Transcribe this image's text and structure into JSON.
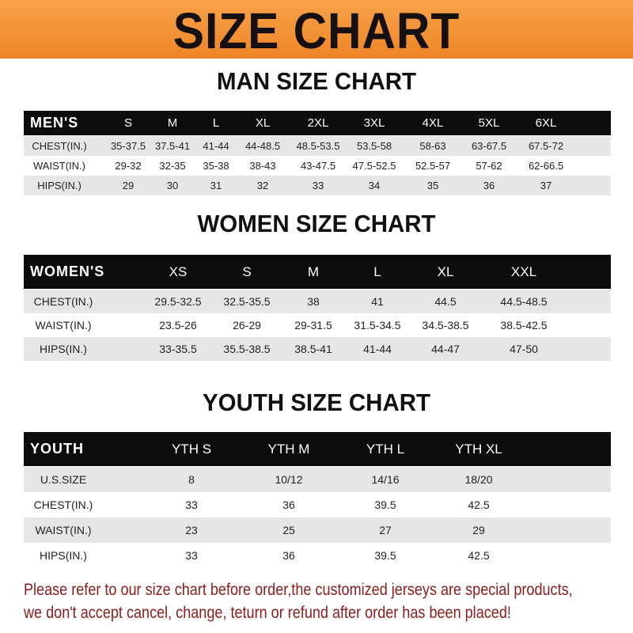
{
  "banner_title": "SIZE CHART",
  "colors": {
    "banner": "#f08a2a",
    "header_bar": "#0c0c0c",
    "row_stripe": "#e6e6e6",
    "note_text": "#8e1b1b"
  },
  "tables": [
    {
      "title": "MAN SIZE CHART",
      "header_label": "MEN'S",
      "sizes": [
        "S",
        "M",
        "L",
        "XL",
        "2XL",
        "3XL",
        "4XL",
        "5XL",
        "6XL"
      ],
      "rows": [
        {
          "label": "CHEST(IN.)",
          "values": [
            "35-37.5",
            "37.5-41",
            "41-44",
            "44-48.5",
            "48.5-53.5",
            "53.5-58",
            "58-63",
            "63-67.5",
            "67.5-72"
          ]
        },
        {
          "label": "WAIST(IN.)",
          "values": [
            "29-32",
            "32-35",
            "35-38",
            "38-43",
            "43-47.5",
            "47.5-52.5",
            "52.5-57",
            "57-62",
            "62-66.5"
          ]
        },
        {
          "label": "HIPS(IN.)",
          "values": [
            "29",
            "30",
            "31",
            "32",
            "33",
            "34",
            "35",
            "36",
            "37"
          ]
        }
      ]
    },
    {
      "title": "WOMEN SIZE CHART",
      "header_label": "WOMEN'S",
      "sizes": [
        "XS",
        "S",
        "M",
        "L",
        "XL",
        "XXL"
      ],
      "rows": [
        {
          "label": "CHEST(IN.)",
          "values": [
            "29.5-32.5",
            "32.5-35.5",
            "38",
            "41",
            "44.5",
            "44.5-48.5"
          ]
        },
        {
          "label": "WAIST(IN.)",
          "values": [
            "23.5-26",
            "26-29",
            "29-31.5",
            "31.5-34.5",
            "34.5-38.5",
            "38.5-42.5"
          ]
        },
        {
          "label": "HIPS(IN.)",
          "values": [
            "33-35.5",
            "35.5-38.5",
            "38.5-41",
            "41-44",
            "44-47",
            "47-50"
          ]
        }
      ]
    },
    {
      "title": "YOUTH SIZE CHART",
      "header_label": "YOUTH",
      "sizes": [
        "YTH S",
        "YTH M",
        "YTH L",
        "YTH XL"
      ],
      "rows": [
        {
          "label": "U.S.SIZE",
          "values": [
            "8",
            "10/12",
            "14/16",
            "18/20"
          ]
        },
        {
          "label": "CHEST(IN.)",
          "values": [
            "33",
            "36",
            "39.5",
            "42.5"
          ]
        },
        {
          "label": "WAIST(IN.)",
          "values": [
            "23",
            "25",
            "27",
            "29"
          ]
        },
        {
          "label": "HIPS(IN.)",
          "values": [
            "33",
            "36",
            "39.5",
            "42.5"
          ]
        }
      ]
    }
  ],
  "notice": [
    "Please refer to our size chart before order,the customized jerseys are special products,",
    "we don't accept cancel, change, teturn or refund after order has been placed!"
  ]
}
